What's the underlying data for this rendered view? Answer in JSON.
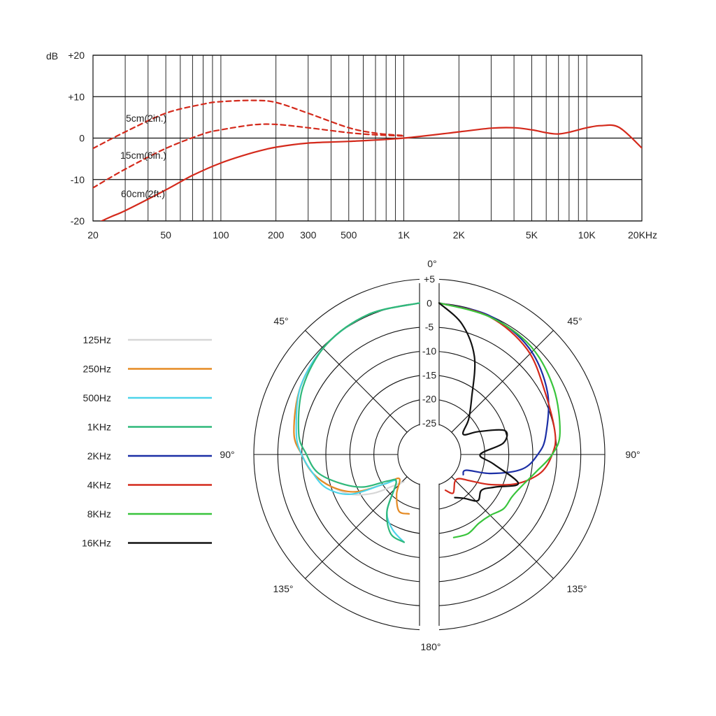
{
  "chart_data": [
    {
      "type": "line",
      "title": "",
      "xlabel": "",
      "ylabel": "dB",
      "x_scale": "log",
      "xlim": [
        20,
        20000
      ],
      "ylim": [
        -20,
        20
      ],
      "grid": true,
      "x_ticks": [
        {
          "value": 20,
          "label": "20"
        },
        {
          "value": 50,
          "label": "50"
        },
        {
          "value": 100,
          "label": "100"
        },
        {
          "value": 200,
          "label": "200"
        },
        {
          "value": 300,
          "label": "300"
        },
        {
          "value": 500,
          "label": "500"
        },
        {
          "value": 1000,
          "label": "1K"
        },
        {
          "value": 2000,
          "label": "2K"
        },
        {
          "value": 5000,
          "label": "5K"
        },
        {
          "value": 10000,
          "label": "10K"
        },
        {
          "value": 20000,
          "label": "20KHz"
        }
      ],
      "y_ticks": [
        {
          "value": 20,
          "label": "+20"
        },
        {
          "value": 10,
          "label": "+10"
        },
        {
          "value": 0,
          "label": "0"
        },
        {
          "value": -10,
          "label": "-10"
        },
        {
          "value": -20,
          "label": "-20"
        }
      ],
      "series": [
        {
          "name": "5cm(2in.)",
          "color": "#d42a1c",
          "dash": true,
          "x": [
            20,
            30,
            50,
            80,
            100,
            150,
            200,
            300,
            500,
            700,
            1000
          ],
          "y": [
            -2.5,
            1.5,
            6,
            8.2,
            8.8,
            9.1,
            8.6,
            6,
            2.5,
            1.2,
            0.6
          ]
        },
        {
          "name": "15cm(6in.)",
          "color": "#d42a1c",
          "dash": true,
          "x": [
            20,
            30,
            50,
            80,
            100,
            150,
            200,
            300,
            500,
            700,
            1000
          ],
          "y": [
            -12,
            -7.5,
            -2.5,
            1,
            2,
            3.2,
            3.3,
            2.5,
            1.3,
            0.8,
            0.5
          ]
        },
        {
          "name": "60cm(2ft.)",
          "color": "#d42a1c",
          "dash": false,
          "x": [
            20,
            25,
            30,
            50,
            70,
            100,
            150,
            200,
            300,
            500,
            1000,
            2000,
            3000,
            4000,
            5000,
            7000,
            10000,
            12000,
            15000,
            20000
          ],
          "y": [
            -21,
            -19,
            -17.5,
            -12.5,
            -9,
            -6,
            -3.5,
            -2.2,
            -1.2,
            -0.8,
            0,
            1.5,
            2.4,
            2.5,
            2,
            1,
            2.5,
            3,
            2.6,
            -2.4
          ]
        }
      ]
    },
    {
      "type": "polar",
      "title": "",
      "r_range": [
        -25,
        5
      ],
      "r_tick_labels": [
        "+5",
        "0",
        "-5",
        "-10",
        "-15",
        "-20",
        "-25"
      ],
      "angle_labels": {
        "top": "0°",
        "upper_left": "45°",
        "upper_right": "45°",
        "left": "90°",
        "right": "90°",
        "lower_left": "135°",
        "lower_right": "135°",
        "bottom": "180°"
      },
      "legend_position": "left",
      "series": [
        {
          "name": "125Hz",
          "color": "#d7d7d7",
          "angle": [
            0,
            20,
            40,
            60,
            80,
            90,
            100,
            110,
            120,
            130,
            140,
            150
          ],
          "db": [
            0,
            -0.5,
            -1.5,
            -3,
            -5,
            -7,
            -9,
            -12,
            -15,
            -19,
            -23,
            -25
          ]
        },
        {
          "name": "250Hz",
          "color": "#e58a22",
          "angle": [
            0,
            20,
            40,
            60,
            80,
            90,
            100,
            110,
            120,
            130,
            140,
            150,
            160,
            170
          ],
          "db": [
            0,
            -0.5,
            -1.5,
            -3,
            -5,
            -7,
            -9,
            -12,
            -16,
            -22,
            -25,
            -22,
            -19,
            -19
          ]
        },
        {
          "name": "500Hz",
          "color": "#4dd4ea",
          "angle": [
            0,
            20,
            40,
            60,
            80,
            90,
            100,
            110,
            120,
            130,
            140,
            150,
            160,
            170
          ],
          "db": [
            0,
            -0.5,
            -1.5,
            -3,
            -5.5,
            -7,
            -9,
            -11,
            -15,
            -22,
            -24,
            -18,
            -15,
            -13
          ]
        },
        {
          "name": "1KHz",
          "color": "#2fb87a",
          "angle": [
            0,
            20,
            40,
            60,
            80,
            90,
            100,
            110,
            120,
            130,
            140,
            150,
            160,
            170
          ],
          "db": [
            0,
            -0.5,
            -1.5,
            -3.5,
            -6,
            -8,
            -10,
            -14,
            -18,
            -23,
            -24,
            -18,
            -14,
            -13
          ]
        },
        {
          "name": "2KHz",
          "color": "#1c2fa6",
          "angle": [
            0,
            20,
            40,
            60,
            80,
            90,
            100,
            110,
            120,
            130
          ],
          "db": [
            0,
            -0.8,
            -2.5,
            -5.5,
            -9,
            -11,
            -14,
            -20,
            -25,
            -25
          ]
        },
        {
          "name": "4KHz",
          "color": "#d42a1c",
          "angle": [
            0,
            20,
            40,
            60,
            80,
            90,
            100,
            110,
            120,
            130,
            140,
            150,
            160,
            170
          ],
          "db": [
            0,
            -1,
            -3,
            -6,
            -7,
            -8,
            -10,
            -14,
            -19,
            -23,
            -25,
            -25,
            -23,
            -24
          ]
        },
        {
          "name": "8KHz",
          "color": "#39c43c",
          "angle": [
            0,
            20,
            40,
            60,
            80,
            90,
            100,
            110,
            120,
            130,
            140,
            150,
            160,
            170
          ],
          "db": [
            0,
            -1,
            -2,
            -4,
            -6,
            -8,
            -11,
            -13,
            -14,
            -14,
            -15,
            -15,
            -14,
            -14
          ]
        },
        {
          "name": "16KHz",
          "color": "#111111",
          "angle": [
            0,
            10,
            20,
            30,
            40,
            50,
            60,
            70,
            80,
            90,
            100,
            110,
            120,
            130,
            140,
            150,
            160
          ],
          "db": [
            0,
            -4,
            -10,
            -18,
            -22,
            -25,
            -22,
            -17,
            -18,
            -23,
            -20,
            -14,
            -18,
            -20,
            -19,
            -21,
            -22
          ]
        }
      ]
    }
  ]
}
